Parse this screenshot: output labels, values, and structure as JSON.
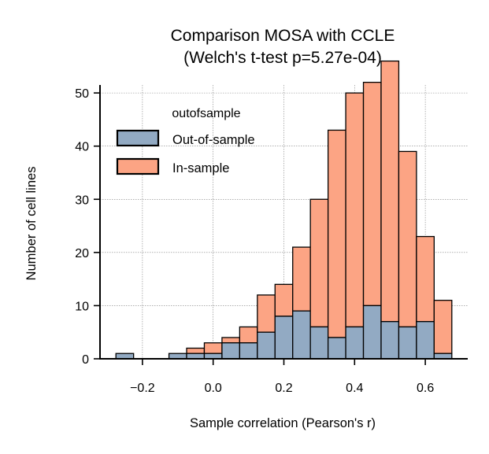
{
  "chart_data": {
    "type": "bar",
    "title": "Comparison MOSA with CCLE",
    "subtitle": "(Welch's t-test p=5.27e-04)",
    "xlabel": "Sample correlation (Pearson's r)",
    "ylabel": "Number of cell lines",
    "xlim": [
      -0.32,
      0.72
    ],
    "ylim": [
      0,
      51.5
    ],
    "xticks": [
      -0.2,
      0.0,
      0.2,
      0.4,
      0.6
    ],
    "xtick_labels": [
      "−0.2",
      "0.0",
      "0.2",
      "0.4",
      "0.6"
    ],
    "yticks": [
      0,
      10,
      20,
      30,
      40,
      50
    ],
    "ytick_labels": [
      "0",
      "10",
      "20",
      "30",
      "40",
      "50"
    ],
    "grid": true,
    "stacked": true,
    "legend": {
      "title": "outofsample",
      "placement": "upper-left",
      "entries": [
        "Out-of-sample",
        "In-sample"
      ]
    },
    "bins": [
      [
        -0.275,
        -0.225
      ],
      [
        -0.225,
        -0.175
      ],
      [
        -0.175,
        -0.125
      ],
      [
        -0.125,
        -0.075
      ],
      [
        -0.075,
        -0.025
      ],
      [
        -0.025,
        0.025
      ],
      [
        0.025,
        0.075
      ],
      [
        0.075,
        0.125
      ],
      [
        0.125,
        0.175
      ],
      [
        0.175,
        0.225
      ],
      [
        0.225,
        0.275
      ],
      [
        0.275,
        0.325
      ],
      [
        0.325,
        0.375
      ],
      [
        0.375,
        0.425
      ],
      [
        0.425,
        0.475
      ],
      [
        0.475,
        0.525
      ],
      [
        0.525,
        0.575
      ],
      [
        0.575,
        0.625
      ],
      [
        0.625,
        0.675
      ]
    ],
    "series": [
      {
        "name": "Out-of-sample",
        "color": "#92aac3",
        "values": [
          1,
          0,
          0,
          1,
          1,
          1,
          3,
          3,
          5,
          8,
          9,
          6,
          4,
          6,
          10,
          7,
          6,
          7,
          1
        ]
      },
      {
        "name": "In-sample",
        "color": "#fca484",
        "values": [
          0,
          0,
          0,
          0,
          1,
          2,
          1,
          3,
          7,
          6,
          12,
          24,
          39,
          44,
          42,
          49,
          33,
          16,
          10
        ]
      }
    ]
  }
}
